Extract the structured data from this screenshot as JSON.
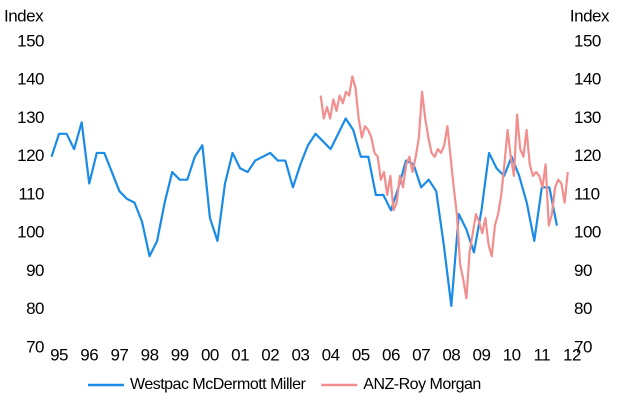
{
  "chart_data": {
    "type": "line",
    "y_label": "Index",
    "y2_label": "Index",
    "xlim": [
      1994.7,
      2012.0
    ],
    "xticks": [
      {
        "value": 1995,
        "label": "95"
      },
      {
        "value": 1996,
        "label": "96"
      },
      {
        "value": 1997,
        "label": "97"
      },
      {
        "value": 1998,
        "label": "98"
      },
      {
        "value": 1999,
        "label": "99"
      },
      {
        "value": 2000,
        "label": "00"
      },
      {
        "value": 2001,
        "label": "01"
      },
      {
        "value": 2002,
        "label": "02"
      },
      {
        "value": 2003,
        "label": "03"
      },
      {
        "value": 2004,
        "label": "04"
      },
      {
        "value": 2005,
        "label": "05"
      },
      {
        "value": 2006,
        "label": "06"
      },
      {
        "value": 2007,
        "label": "07"
      },
      {
        "value": 2008,
        "label": "08"
      },
      {
        "value": 2009,
        "label": "09"
      },
      {
        "value": 2010,
        "label": "10"
      },
      {
        "value": 2011,
        "label": "11"
      },
      {
        "value": 2012,
        "label": "12"
      }
    ],
    "ylim": [
      70,
      150
    ],
    "yticks": [
      70,
      80,
      90,
      100,
      110,
      120,
      130,
      140,
      150
    ],
    "y2lim": [
      70,
      150
    ],
    "y2ticks": [
      70,
      80,
      90,
      100,
      110,
      120,
      130,
      140,
      150
    ],
    "grid": false,
    "legend": "bottom",
    "series": [
      {
        "name": "Westpac McDermott Miller",
        "color": "#1a8be6",
        "x": [
          1994.75,
          1995,
          1995.25,
          1995.5,
          1995.75,
          1996,
          1996.25,
          1996.5,
          1996.75,
          1997,
          1997.25,
          1997.5,
          1997.75,
          1998,
          1998.25,
          1998.5,
          1998.75,
          1999,
          1999.25,
          1999.5,
          1999.75,
          2000,
          2000.25,
          2000.5,
          2000.75,
          2001,
          2001.25,
          2001.5,
          2001.75,
          2002,
          2002.25,
          2002.5,
          2002.75,
          2003,
          2003.25,
          2003.5,
          2003.75,
          2004,
          2004.25,
          2004.5,
          2004.75,
          2005,
          2005.25,
          2005.5,
          2005.75,
          2006,
          2006.25,
          2006.5,
          2006.75,
          2007,
          2007.25,
          2007.5,
          2007.75,
          2008,
          2008.25,
          2008.5,
          2008.75,
          2009,
          2009.25,
          2009.5,
          2009.75,
          2010,
          2010.25,
          2010.5,
          2010.75,
          2011,
          2011.25,
          2011.5
        ],
        "values": [
          120,
          126,
          126,
          122,
          129,
          113,
          121,
          121,
          116,
          111,
          109,
          108,
          103,
          94,
          98,
          108,
          116,
          114,
          114,
          120,
          123,
          104,
          98,
          113,
          121,
          117,
          116,
          119,
          120,
          121,
          119,
          119,
          112,
          118,
          123,
          126,
          124,
          122,
          126,
          130,
          127,
          120,
          120,
          110,
          110,
          106,
          112,
          119,
          118,
          112,
          114,
          111,
          97,
          81,
          105,
          101,
          95,
          106,
          121,
          117,
          115,
          120,
          115,
          108,
          98,
          112,
          112,
          102
        ]
      },
      {
        "name": "ANZ-Roy Morgan",
        "color": "#f28e8e",
        "x": [
          2003.67,
          2003.775,
          2003.88,
          2003.985,
          2004.09,
          2004.195,
          2004.3,
          2004.405,
          2004.51,
          2004.615,
          2004.72,
          2004.825,
          2004.93,
          2005.035,
          2005.14,
          2005.245,
          2005.35,
          2005.455,
          2005.56,
          2005.665,
          2005.77,
          2005.875,
          2005.98,
          2006.085,
          2006.19,
          2006.295,
          2006.4,
          2006.505,
          2006.61,
          2006.715,
          2006.82,
          2006.925,
          2007.03,
          2007.135,
          2007.24,
          2007.345,
          2007.45,
          2007.555,
          2007.66,
          2007.765,
          2007.87,
          2007.975,
          2008.08,
          2008.185,
          2008.29,
          2008.395,
          2008.5,
          2008.605,
          2008.71,
          2008.815,
          2008.92,
          2009.025,
          2009.13,
          2009.235,
          2009.34,
          2009.445,
          2009.55,
          2009.655,
          2009.76,
          2009.865,
          2009.97,
          2010.075,
          2010.18,
          2010.285,
          2010.39,
          2010.495,
          2010.6,
          2010.705,
          2010.81,
          2010.915,
          2011.02,
          2011.125,
          2011.23,
          2011.335,
          2011.44,
          2011.545,
          2011.65,
          2011.755,
          2011.86
        ],
        "values": [
          136,
          130,
          133,
          130,
          135,
          132,
          136,
          134,
          137,
          136,
          141,
          138,
          130,
          125,
          128,
          127,
          125,
          121,
          120,
          114,
          116,
          110,
          115,
          106,
          108,
          115,
          112,
          118,
          120,
          116,
          120,
          125,
          137,
          130,
          125,
          121,
          120,
          122,
          121,
          123,
          128,
          120,
          112,
          105,
          92,
          88,
          83,
          95,
          100,
          105,
          103,
          100,
          104,
          97,
          94,
          102,
          105,
          110,
          118,
          127,
          120,
          115,
          131,
          122,
          120,
          127,
          118,
          115,
          116,
          115,
          112,
          118,
          102,
          105,
          112,
          114,
          113,
          108,
          116
        ]
      }
    ]
  }
}
